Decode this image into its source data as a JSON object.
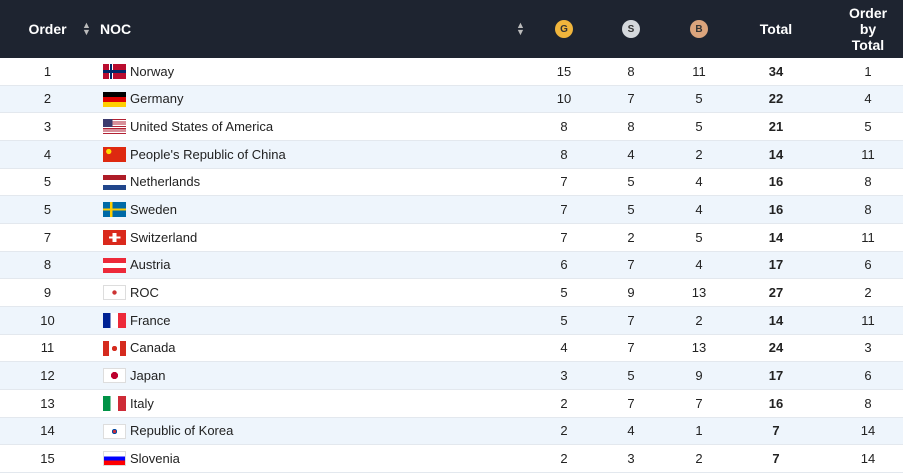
{
  "table": {
    "header": [
      "Order",
      "NOC",
      "G",
      "S",
      "B",
      "Total",
      "Order by Total"
    ],
    "rows": [
      [
        1,
        "Norway",
        15,
        8,
        11,
        34,
        1
      ],
      [
        2,
        "Germany",
        10,
        7,
        5,
        22,
        4
      ],
      [
        3,
        "United States of America",
        8,
        8,
        5,
        21,
        5
      ],
      [
        4,
        "People's Republic of China",
        8,
        4,
        2,
        14,
        11
      ],
      [
        5,
        "Netherlands",
        7,
        5,
        4,
        16,
        8
      ],
      [
        5,
        "Sweden",
        7,
        5,
        4,
        16,
        8
      ],
      [
        7,
        "Switzerland",
        7,
        2,
        5,
        14,
        11
      ],
      [
        8,
        "Austria",
        6,
        7,
        4,
        17,
        6
      ],
      [
        9,
        "ROC",
        5,
        9,
        13,
        27,
        2
      ],
      [
        10,
        "France",
        5,
        7,
        2,
        14,
        11
      ],
      [
        11,
        "Canada",
        4,
        7,
        13,
        24,
        3
      ],
      [
        12,
        "Japan",
        3,
        5,
        9,
        17,
        6
      ],
      [
        13,
        "Italy",
        2,
        7,
        7,
        16,
        8
      ],
      [
        14,
        "Republic of Korea",
        2,
        4,
        1,
        7,
        14
      ],
      [
        15,
        "Slovenia",
        2,
        3,
        2,
        7,
        14
      ]
    ]
  }
}
